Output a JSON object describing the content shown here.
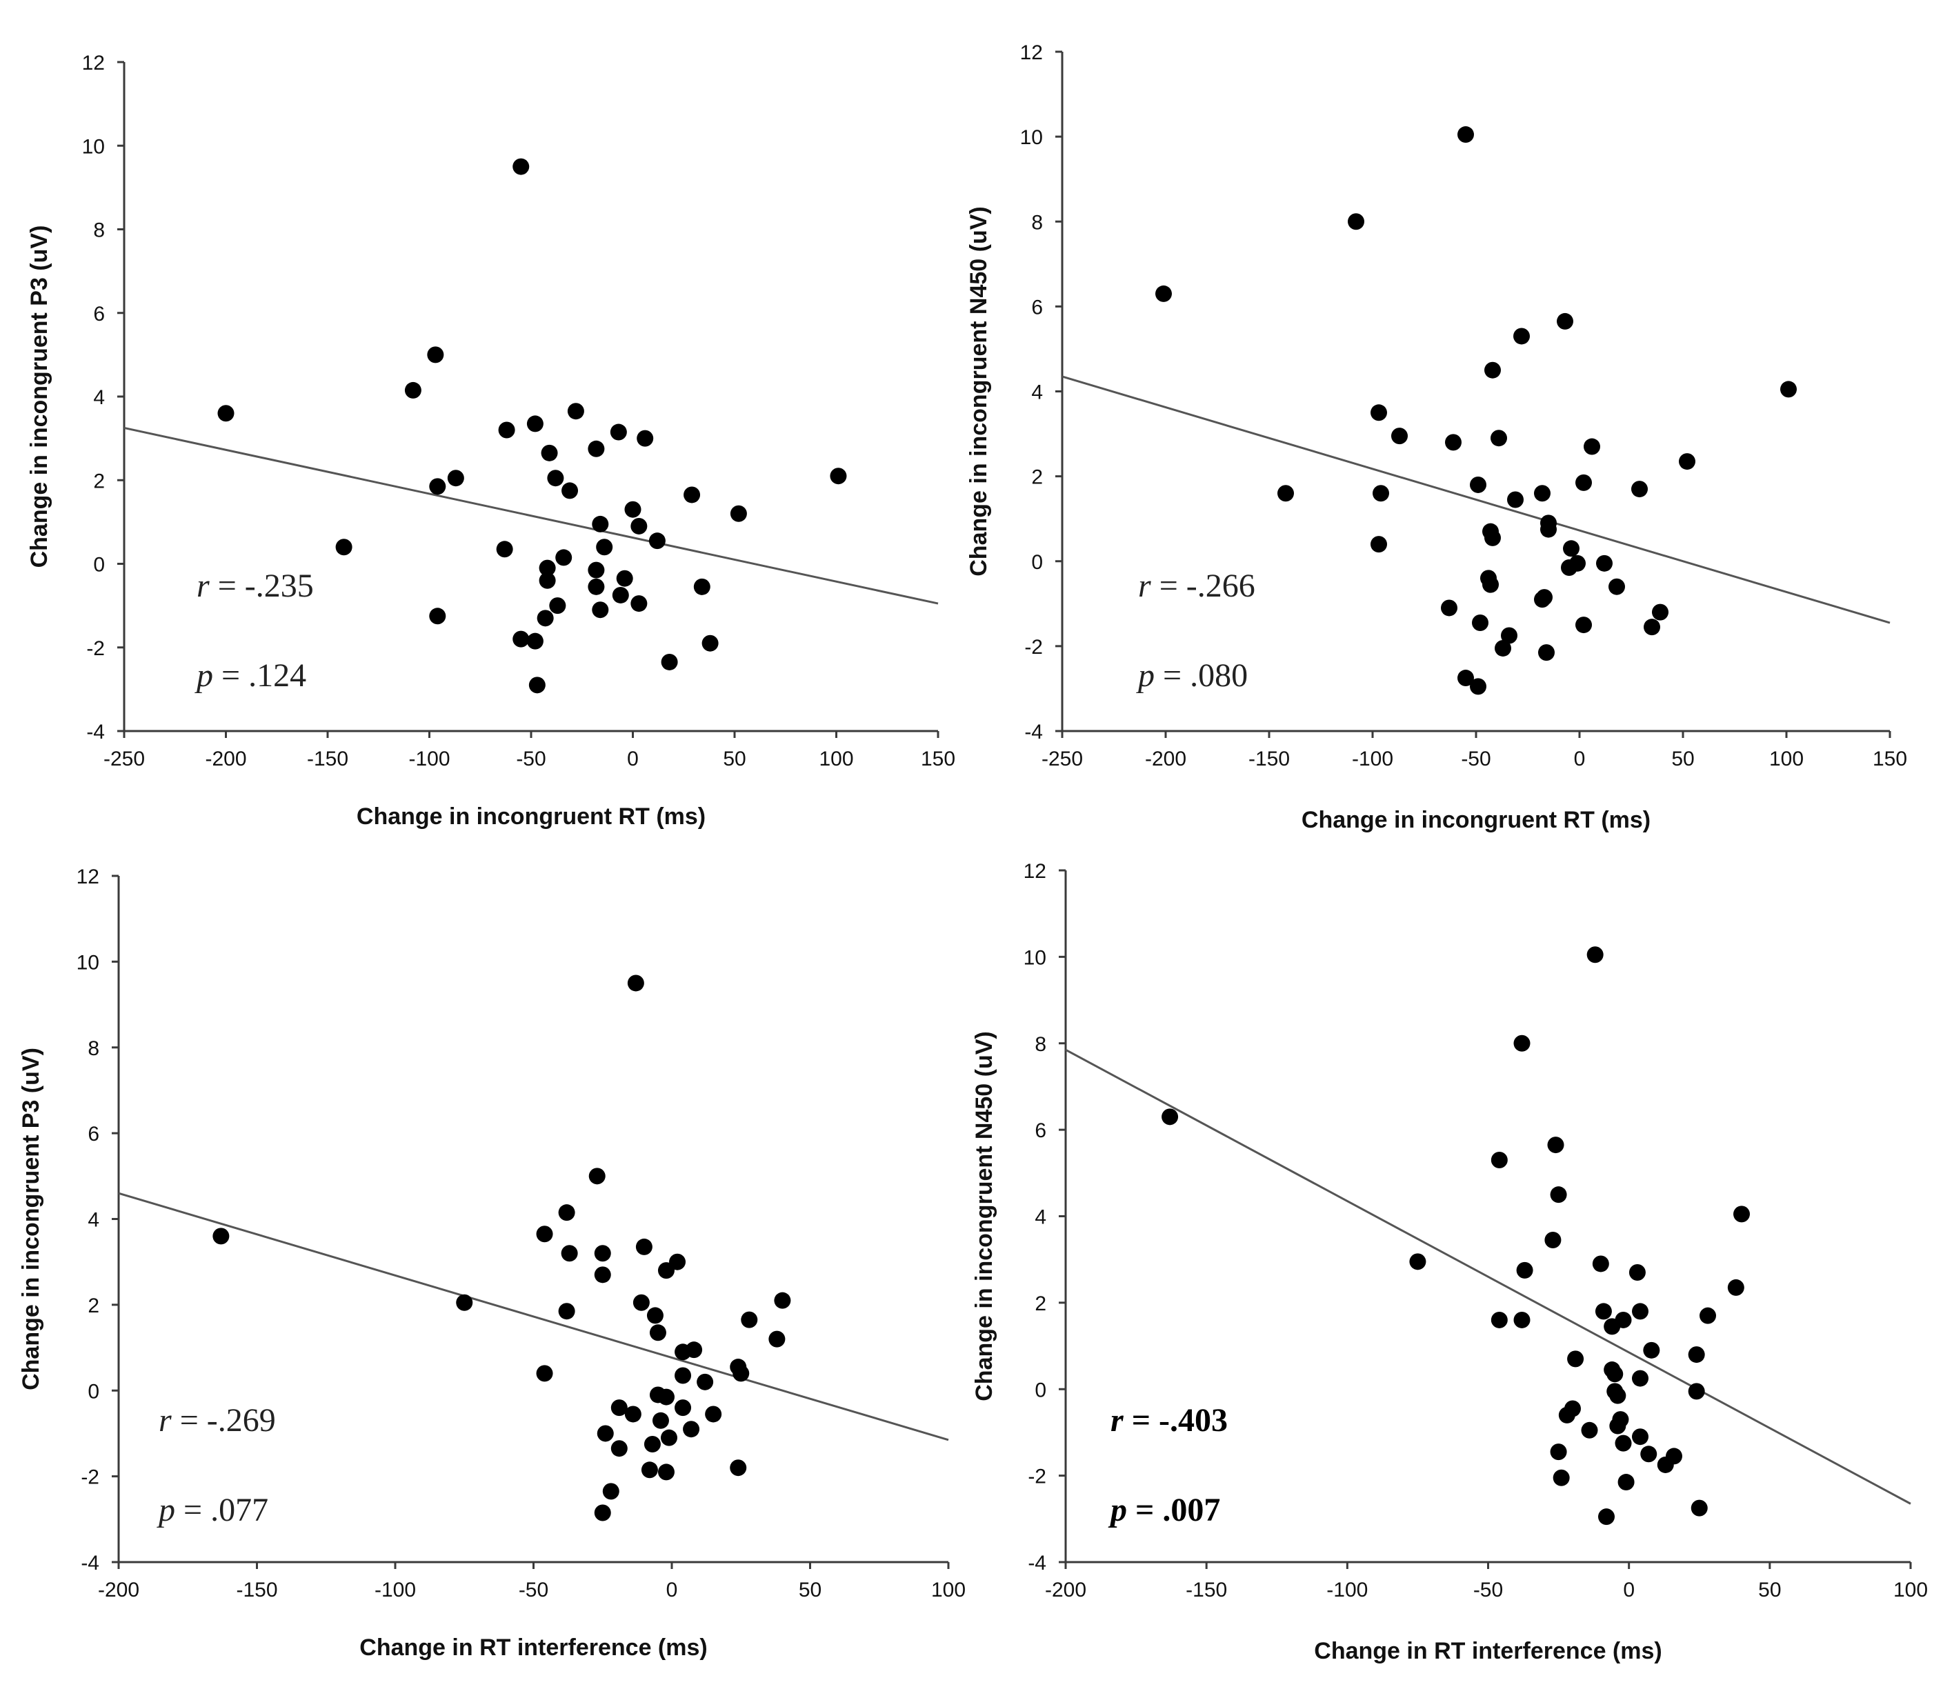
{
  "chart_data": [
    {
      "type": "scatter",
      "id": "top-left",
      "xlabel": "Change in incongruent RT (ms)",
      "ylabel": "Change in incongruent P3 (uV)",
      "xlim": [
        -250,
        150
      ],
      "ylim": [
        -4,
        12
      ],
      "xticks": [
        -250,
        -200,
        -150,
        -100,
        -50,
        0,
        50,
        100,
        150
      ],
      "yticks": [
        -4,
        -2,
        0,
        2,
        4,
        6,
        8,
        10,
        12
      ],
      "points": [
        [
          -200,
          3.6
        ],
        [
          -142,
          0.4
        ],
        [
          -108,
          4.15
        ],
        [
          -97,
          5.0
        ],
        [
          -96,
          1.85
        ],
        [
          -96,
          -1.25
        ],
        [
          -87,
          2.05
        ],
        [
          -62,
          3.2
        ],
        [
          -63,
          0.35
        ],
        [
          -55,
          9.5
        ],
        [
          -55,
          -1.8
        ],
        [
          -48,
          3.35
        ],
        [
          -48,
          -1.85
        ],
        [
          -47,
          -2.9
        ],
        [
          -42,
          -0.1
        ],
        [
          -42,
          -0.4
        ],
        [
          -43,
          -1.3
        ],
        [
          -41,
          2.65
        ],
        [
          -38,
          2.05
        ],
        [
          -37,
          -1.0
        ],
        [
          -34,
          0.15
        ],
        [
          -31,
          1.75
        ],
        [
          -28,
          3.65
        ],
        [
          -18,
          2.75
        ],
        [
          -18,
          -0.15
        ],
        [
          -18,
          -0.55
        ],
        [
          -16,
          0.95
        ],
        [
          -16,
          -1.1
        ],
        [
          -14,
          0.4
        ],
        [
          -7,
          3.15
        ],
        [
          -6,
          -0.75
        ],
        [
          -4,
          -0.35
        ],
        [
          0,
          1.3
        ],
        [
          3,
          0.9
        ],
        [
          3,
          -0.95
        ],
        [
          6,
          3.0
        ],
        [
          12,
          0.55
        ],
        [
          18,
          -2.35
        ],
        [
          29,
          1.65
        ],
        [
          34,
          -0.55
        ],
        [
          38,
          -1.9
        ],
        [
          52,
          1.2
        ],
        [
          101,
          2.1
        ]
      ],
      "fit": {
        "x": [
          -250,
          150
        ],
        "y": [
          3.25,
          -0.95
        ]
      },
      "r_label": "r",
      "r_value": " = -.235",
      "p_label": "p",
      "p_value": " = .124",
      "bold": false
    },
    {
      "type": "scatter",
      "id": "top-right",
      "xlabel": "Change in incongruent RT (ms)",
      "ylabel": "Change in incongruent N450 (uV)",
      "xlim": [
        -250,
        150
      ],
      "ylim": [
        -4,
        12
      ],
      "xticks": [
        -250,
        -200,
        -150,
        -100,
        -50,
        0,
        50,
        100,
        150
      ],
      "yticks": [
        -4,
        -2,
        0,
        2,
        4,
        6,
        8,
        10,
        12
      ],
      "points": [
        [
          -201,
          6.3
        ],
        [
          -142,
          1.6
        ],
        [
          -108,
          8.0
        ],
        [
          -97,
          3.5
        ],
        [
          -96,
          1.6
        ],
        [
          -97,
          0.4
        ],
        [
          -87,
          2.95
        ],
        [
          -63,
          -1.1
        ],
        [
          -61,
          2.8
        ],
        [
          -55,
          10.05
        ],
        [
          -55,
          -2.75
        ],
        [
          -49,
          1.8
        ],
        [
          -48,
          -1.45
        ],
        [
          -49,
          -2.95
        ],
        [
          -44,
          -0.4
        ],
        [
          -43,
          0.7
        ],
        [
          -42,
          0.55
        ],
        [
          -43,
          -0.55
        ],
        [
          -42,
          4.5
        ],
        [
          -39,
          2.9
        ],
        [
          -37,
          -2.05
        ],
        [
          -34,
          -1.75
        ],
        [
          -31,
          1.45
        ],
        [
          -28,
          5.3
        ],
        [
          -18,
          1.6
        ],
        [
          -18,
          -0.9
        ],
        [
          -17,
          -0.85
        ],
        [
          -16,
          -2.15
        ],
        [
          -15,
          0.9
        ],
        [
          -15,
          0.75
        ],
        [
          -7,
          5.65
        ],
        [
          -5,
          -0.15
        ],
        [
          -4,
          0.3
        ],
        [
          -1,
          -0.05
        ],
        [
          2,
          1.85
        ],
        [
          2,
          -1.5
        ],
        [
          6,
          2.7
        ],
        [
          12,
          -0.05
        ],
        [
          18,
          -0.6
        ],
        [
          29,
          1.7
        ],
        [
          35,
          -1.55
        ],
        [
          39,
          -1.2
        ],
        [
          52,
          2.35
        ],
        [
          101,
          4.05
        ]
      ],
      "fit": {
        "x": [
          -250,
          150
        ],
        "y": [
          4.35,
          -1.45
        ]
      },
      "r_label": "r",
      "r_value": " = -.266",
      "p_label": "p",
      "p_value": " = .080",
      "bold": false
    },
    {
      "type": "scatter",
      "id": "bottom-left",
      "xlabel": "Change in RT interference (ms)",
      "ylabel": "Change in incongruent P3 (uV)",
      "xlim": [
        -200,
        100
      ],
      "ylim": [
        -4,
        12
      ],
      "xticks": [
        -200,
        -150,
        -100,
        -50,
        0,
        50,
        100
      ],
      "yticks": [
        -4,
        -2,
        0,
        2,
        4,
        6,
        8,
        10,
        12
      ],
      "points": [
        [
          -163,
          3.6
        ],
        [
          -75,
          2.05
        ],
        [
          -46,
          3.65
        ],
        [
          -46,
          0.4
        ],
        [
          -38,
          4.15
        ],
        [
          -37,
          3.2
        ],
        [
          -38,
          1.85
        ],
        [
          -27,
          5.0
        ],
        [
          -25,
          3.2
        ],
        [
          -25,
          2.7
        ],
        [
          -24,
          -1.0
        ],
        [
          -25,
          -2.85
        ],
        [
          -22,
          -2.35
        ],
        [
          -19,
          -1.35
        ],
        [
          -19,
          -0.4
        ],
        [
          -14,
          -0.55
        ],
        [
          -13,
          9.5
        ],
        [
          -11,
          2.05
        ],
        [
          -10,
          3.35
        ],
        [
          -8,
          -1.85
        ],
        [
          -7,
          -1.25
        ],
        [
          -6,
          1.75
        ],
        [
          -5,
          1.35
        ],
        [
          -5,
          -0.1
        ],
        [
          -4,
          -0.7
        ],
        [
          -2,
          -0.15
        ],
        [
          -2,
          2.8
        ],
        [
          -2,
          -1.9
        ],
        [
          -1,
          -1.1
        ],
        [
          2,
          3.0
        ],
        [
          4,
          0.9
        ],
        [
          4,
          0.35
        ],
        [
          4,
          -0.4
        ],
        [
          7,
          -0.9
        ],
        [
          8,
          0.95
        ],
        [
          12,
          0.2
        ],
        [
          15,
          -0.55
        ],
        [
          24,
          0.55
        ],
        [
          24,
          -1.8
        ],
        [
          25,
          0.4
        ],
        [
          28,
          1.65
        ],
        [
          38,
          1.2
        ],
        [
          40,
          2.1
        ]
      ],
      "fit": {
        "x": [
          -200,
          100
        ],
        "y": [
          4.6,
          -1.15
        ]
      },
      "r_label": "r",
      "r_value": " = -.269",
      "p_label": "p",
      "p_value": " = .077",
      "bold": false
    },
    {
      "type": "scatter",
      "id": "bottom-right",
      "xlabel": "Change in RT interference (ms)",
      "ylabel": "Change in incongruent N450 (uV)",
      "xlim": [
        -200,
        100
      ],
      "ylim": [
        -4,
        12
      ],
      "xticks": [
        -200,
        -150,
        -100,
        -50,
        0,
        50,
        100
      ],
      "yticks": [
        -4,
        -2,
        0,
        2,
        4,
        6,
        8,
        10,
        12
      ],
      "points": [
        [
          -163,
          6.3
        ],
        [
          -75,
          2.95
        ],
        [
          -46,
          5.3
        ],
        [
          -46,
          1.6
        ],
        [
          -38,
          8.0
        ],
        [
          -37,
          2.75
        ],
        [
          -38,
          1.6
        ],
        [
          -27,
          3.45
        ],
        [
          -26,
          5.65
        ],
        [
          -25,
          4.5
        ],
        [
          -25,
          -1.45
        ],
        [
          -24,
          -2.05
        ],
        [
          -22,
          -0.6
        ],
        [
          -20,
          -0.45
        ],
        [
          -19,
          0.7
        ],
        [
          -14,
          -0.95
        ],
        [
          -12,
          10.05
        ],
        [
          -10,
          2.9
        ],
        [
          -9,
          1.8
        ],
        [
          -8,
          -2.95
        ],
        [
          -6,
          0.45
        ],
        [
          -6,
          1.45
        ],
        [
          -5,
          0.35
        ],
        [
          -5,
          -0.05
        ],
        [
          -4,
          -0.15
        ],
        [
          -4,
          -0.85
        ],
        [
          -2,
          1.6
        ],
        [
          -3,
          -0.7
        ],
        [
          -2,
          -1.25
        ],
        [
          -1,
          -2.15
        ],
        [
          3,
          2.7
        ],
        [
          4,
          1.8
        ],
        [
          4,
          0.25
        ],
        [
          4,
          -1.1
        ],
        [
          7,
          -1.5
        ],
        [
          8,
          0.9
        ],
        [
          13,
          -1.75
        ],
        [
          16,
          -1.55
        ],
        [
          24,
          0.8
        ],
        [
          24,
          -0.05
        ],
        [
          25,
          -2.75
        ],
        [
          28,
          1.7
        ],
        [
          38,
          2.35
        ],
        [
          40,
          4.05
        ]
      ],
      "fit": {
        "x": [
          -200,
          100
        ],
        "y": [
          7.85,
          -2.65
        ]
      },
      "r_label": "r",
      "r_value": " = -.403",
      "p_label": "p",
      "p_value": " = .007",
      "bold": true
    }
  ]
}
